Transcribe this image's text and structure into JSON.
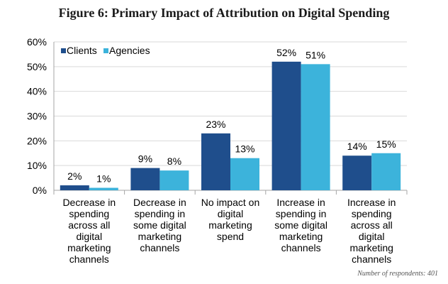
{
  "chart_data": {
    "type": "bar",
    "title": "Figure 6: Primary Impact of Attribution on Digital Spending",
    "categories": [
      "Decrease in spending across all digital marketing channels",
      "Decrease in spending in some digital marketing channels",
      "No impact on digital marketing spend",
      "Increase in spending in some digital marketing channels",
      "Increase in spending across all digital marketing channels"
    ],
    "category_lines": [
      [
        "Decrease in",
        "spending",
        "across all",
        "digital",
        "marketing",
        "channels"
      ],
      [
        "Decrease in",
        "spending in",
        "some digital",
        "marketing",
        "channels"
      ],
      [
        "No impact on",
        "digital",
        "marketing",
        "spend"
      ],
      [
        "Increase in",
        "spending in",
        "some digital",
        "marketing",
        "channels"
      ],
      [
        "Increase in",
        "spending",
        "across all",
        "digital",
        "marketing",
        "channels"
      ]
    ],
    "series": [
      {
        "name": "Clients",
        "color": "#1f4e8c",
        "values": [
          2,
          9,
          23,
          52,
          14
        ]
      },
      {
        "name": "Agencies",
        "color": "#3cb3db",
        "values": [
          1,
          8,
          13,
          51,
          15
        ]
      }
    ],
    "ylim": [
      0,
      60
    ],
    "yticks": [
      0,
      10,
      20,
      30,
      40,
      50,
      60
    ],
    "ytick_labels": [
      "0%",
      "10%",
      "20%",
      "30%",
      "40%",
      "50%",
      "60%"
    ],
    "value_suffix": "%",
    "xlabel": "",
    "ylabel": "",
    "grid": true,
    "legend_position": "top-left"
  },
  "footnote": "Number of respondents: 401"
}
